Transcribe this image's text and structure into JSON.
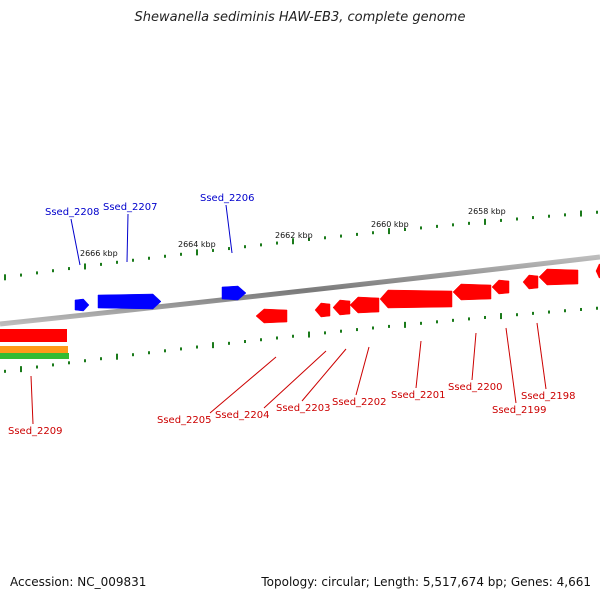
{
  "title": "Shewanella sediminis HAW-EB3, complete genome",
  "footer": {
    "accession": "Accession: NC_009831",
    "summary": "Topology: circular; Length: 5,517,674 bp; Genes: 4,661"
  },
  "colors": {
    "forward": "#0000ff",
    "reverse": "#ff0000",
    "backbone": "#8a8a8a",
    "ticks": "#1a7a1a",
    "label_forward": "#0000cc",
    "label_reverse": "#cc0000",
    "track_orange": "#ff9a1a",
    "track_green": "#33bb33"
  },
  "scale_labels": [
    "2666 kbp",
    "2664 kbp",
    "2662 kbp",
    "2660 kbp",
    "2658 kbp"
  ],
  "genes_forward": [
    "Ssed_2208",
    "Ssed_2207",
    "Ssed_2206"
  ],
  "genes_reverse": [
    "Ssed_2209",
    "Ssed_2205",
    "Ssed_2204",
    "Ssed_2203",
    "Ssed_2202",
    "Ssed_2201",
    "Ssed_2200",
    "Ssed_2199",
    "Ssed_2198"
  ]
}
